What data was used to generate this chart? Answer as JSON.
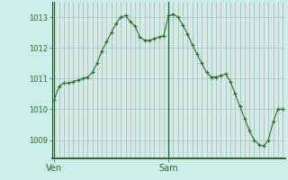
{
  "background_color": "#cceee8",
  "line_color": "#2d6e2d",
  "marker_color": "#2d6e2d",
  "grid_h_color": "#aacece",
  "grid_v_color": "#d4a0a0",
  "ylim": [
    1008.4,
    1013.5
  ],
  "yticks": [
    1009,
    1010,
    1011,
    1012,
    1013
  ],
  "xtick_labels": [
    "Ven",
    "Sam"
  ],
  "xtick_positions": [
    0,
    24
  ],
  "values": [
    1010.3,
    1010.75,
    1010.85,
    1010.85,
    1010.9,
    1010.95,
    1011.0,
    1011.05,
    1011.2,
    1011.5,
    1011.9,
    1012.2,
    1012.5,
    1012.8,
    1013.0,
    1013.05,
    1012.85,
    1012.7,
    1012.35,
    1012.25,
    1012.25,
    1012.3,
    1012.35,
    1012.4,
    1013.05,
    1013.1,
    1013.0,
    1012.75,
    1012.45,
    1012.1,
    1011.8,
    1011.5,
    1011.2,
    1011.05,
    1011.05,
    1011.1,
    1011.15,
    1010.9,
    1010.5,
    1010.1,
    1009.7,
    1009.3,
    1009.0,
    1008.85,
    1008.8,
    1009.0,
    1009.6,
    1010.0,
    1010.0
  ]
}
